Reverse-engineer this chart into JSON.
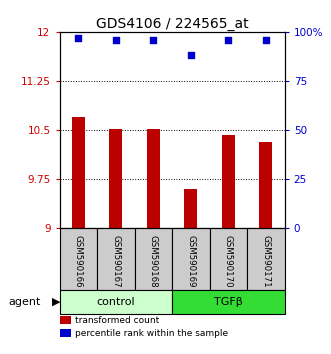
{
  "title": "GDS4106 / 224565_at",
  "categories": [
    "GSM590166",
    "GSM590167",
    "GSM590168",
    "GSM590169",
    "GSM590170",
    "GSM590171"
  ],
  "bar_values": [
    10.7,
    10.52,
    10.52,
    9.6,
    10.42,
    10.32
  ],
  "scatter_values": [
    97,
    96,
    96,
    88,
    96,
    96
  ],
  "ylim_left": [
    9,
    12
  ],
  "ylim_right": [
    0,
    100
  ],
  "yticks_left": [
    9,
    9.75,
    10.5,
    11.25,
    12
  ],
  "ytick_labels_left": [
    "9",
    "9.75",
    "10.5",
    "11.25",
    "12"
  ],
  "yticks_right": [
    0,
    25,
    50,
    75,
    100
  ],
  "ytick_labels_right": [
    "0",
    "25",
    "50",
    "75",
    "100%"
  ],
  "bar_color": "#bb0000",
  "scatter_color": "#0000cc",
  "bar_bottom": 9,
  "group_labels": [
    "control",
    "TGFβ"
  ],
  "group_colors": [
    "#ccffcc",
    "#33dd33"
  ],
  "agent_label": "agent",
  "legend_bar_label": "transformed count",
  "legend_scatter_label": "percentile rank within the sample",
  "grid_yticks": [
    9.75,
    10.5,
    11.25
  ],
  "background_color": "#ffffff",
  "tick_label_fontsize": 7.5,
  "title_fontsize": 10
}
